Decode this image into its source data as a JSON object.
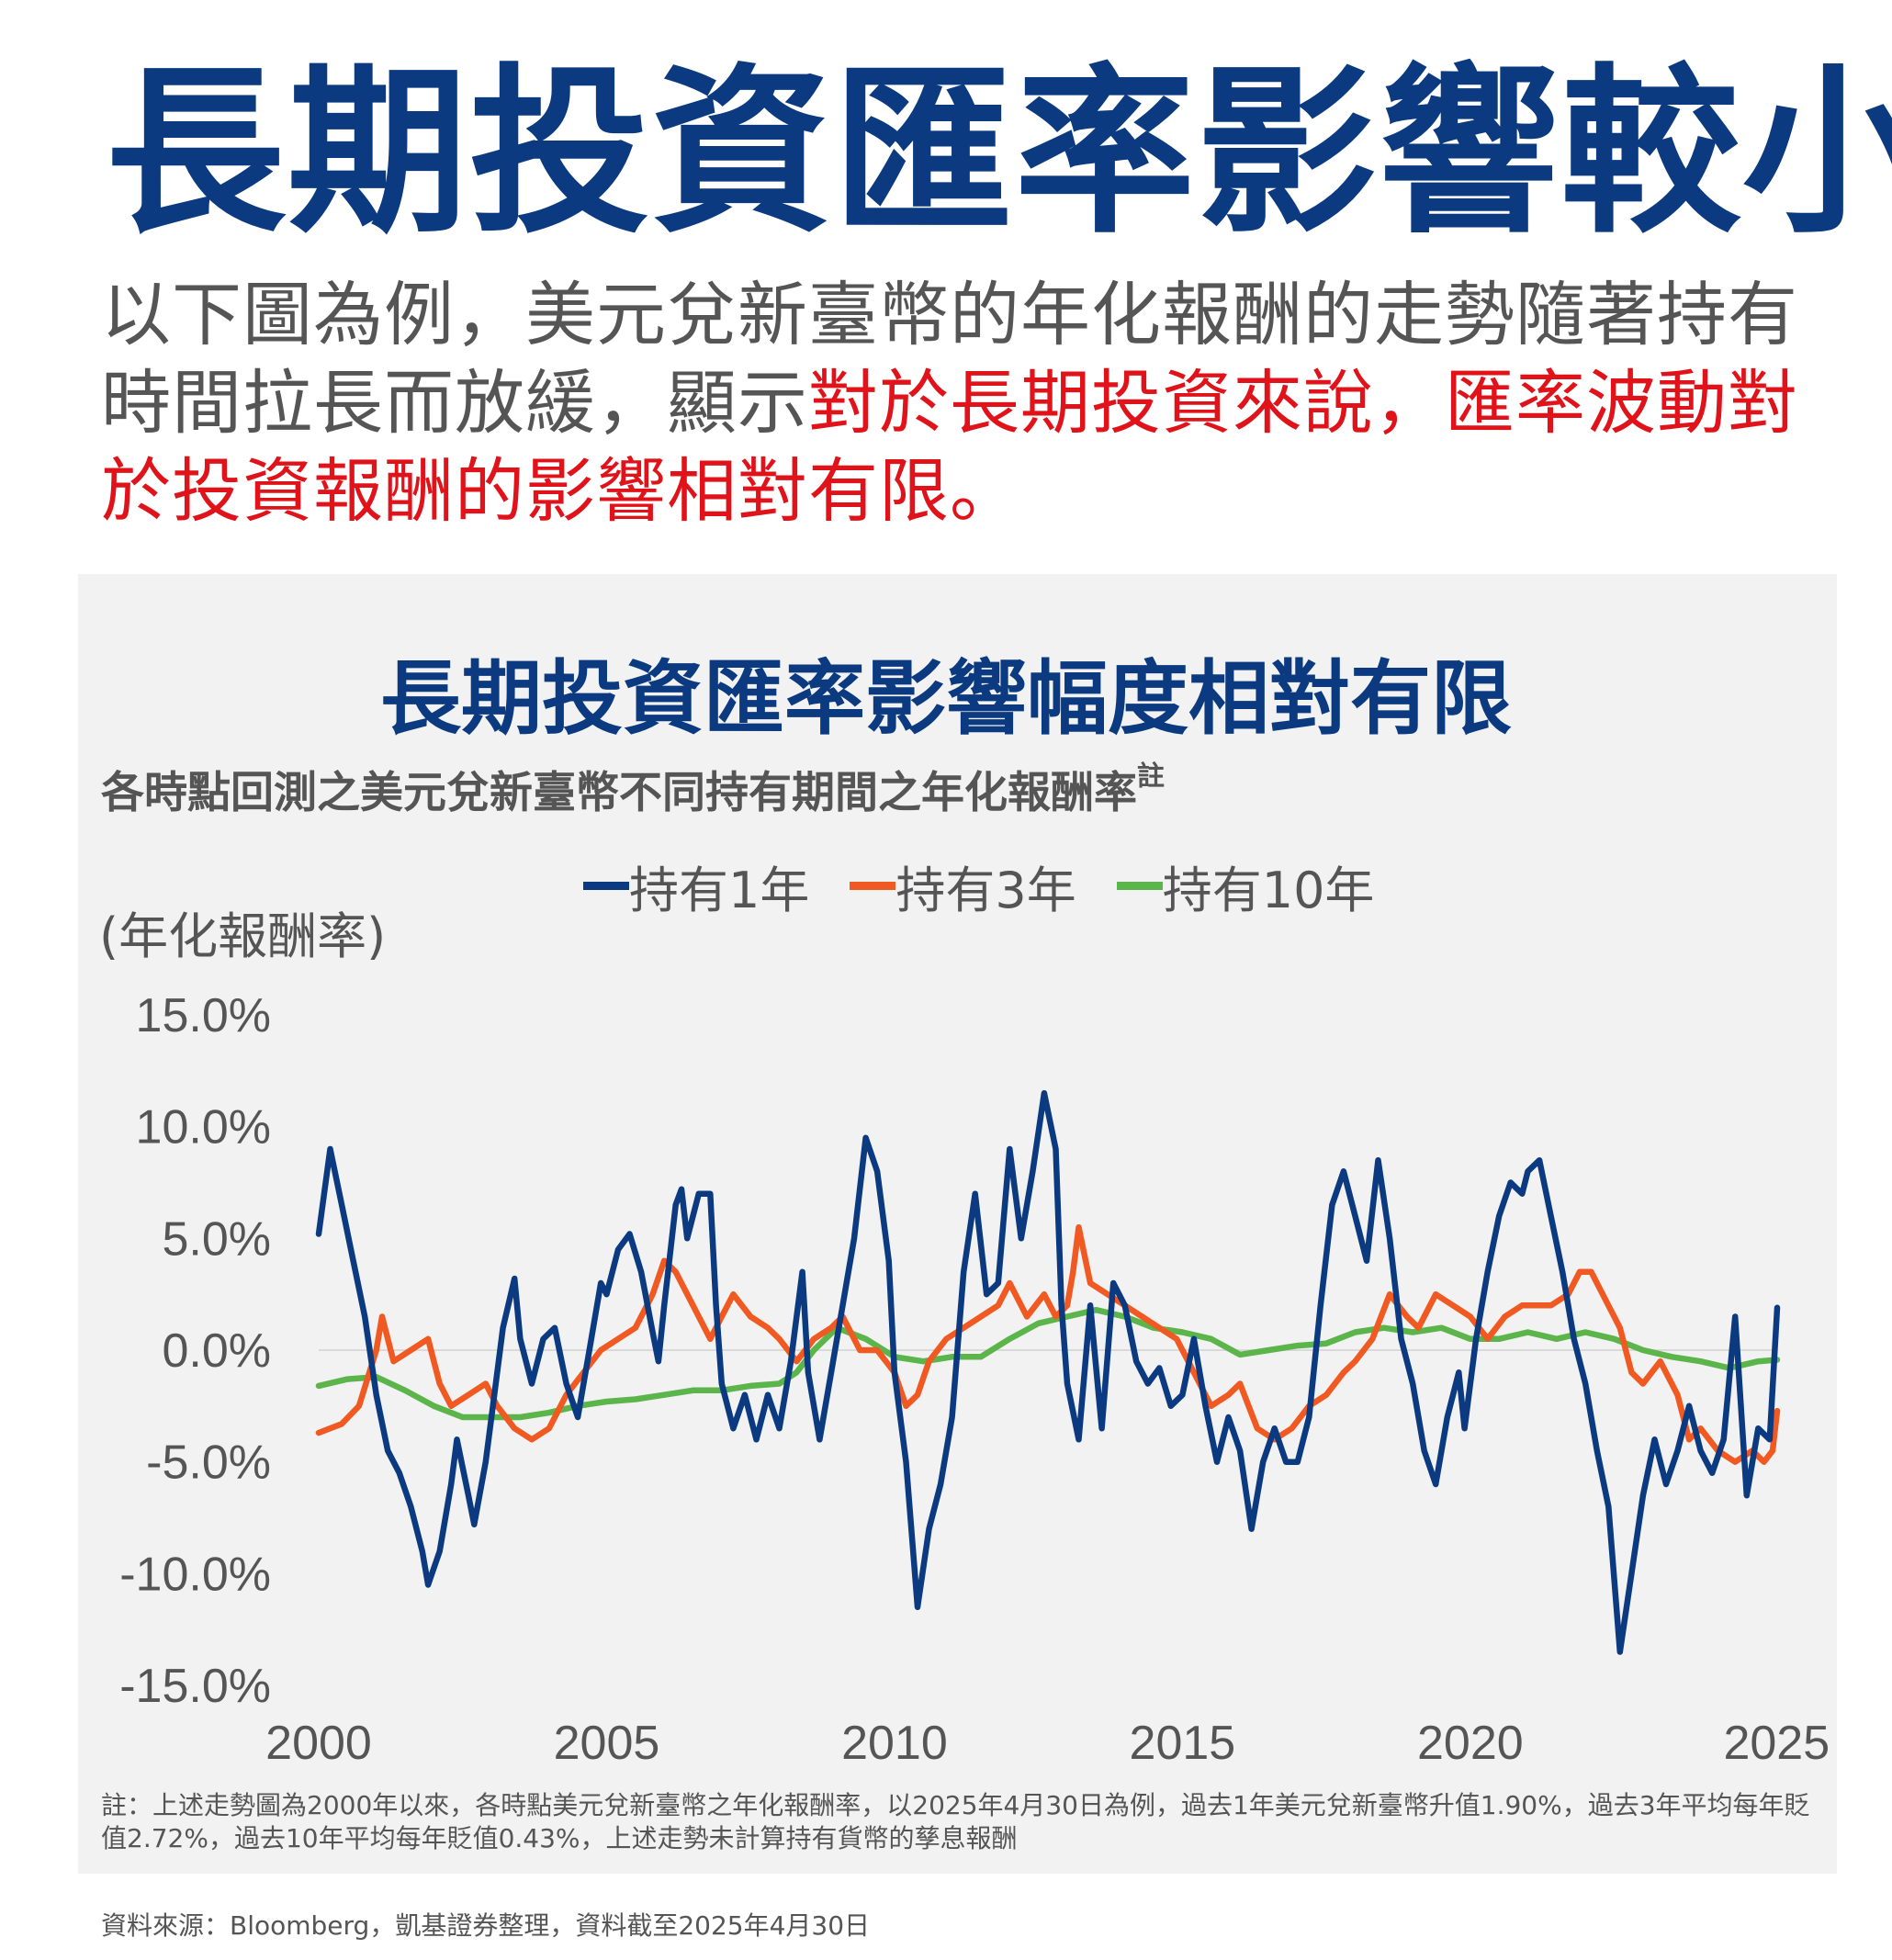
{
  "headline": "長期投資匯率影響較小",
  "intro": {
    "part1": "以下圖為例，美元兌新臺幣的年化報酬的走勢隨著持有時間拉長而放緩，顯示",
    "highlight": "對於長期投資來說，匯率波動對於投資報酬的影響相對有限。"
  },
  "chart_data": {
    "type": "line",
    "title": "長期投資匯率影響幅度相對有限",
    "subtitle": "各時點回測之美元兌新臺幣不同持有期間之年化報酬率",
    "subtitle_note": "註",
    "ylabel": "(年化報酬率)",
    "xlabel": "",
    "ylim": [
      -15,
      15
    ],
    "xlim": [
      2000,
      2025.33
    ],
    "yticks": [
      "15.0%",
      "10.0%",
      "5.0%",
      "0.0%",
      "-5.0%",
      "-10.0%",
      "-15.0%"
    ],
    "xticks": [
      "2000",
      "2005",
      "2010",
      "2015",
      "2020",
      "2025"
    ],
    "grid": false,
    "legend_position": "top",
    "series": [
      {
        "name": "持有1年",
        "color": "#0b3a80",
        "points": [
          [
            2000.0,
            5.2
          ],
          [
            2000.2,
            9.0
          ],
          [
            2000.4,
            6.5
          ],
          [
            2000.6,
            4.0
          ],
          [
            2000.8,
            1.5
          ],
          [
            2001.0,
            -2.0
          ],
          [
            2001.2,
            -4.5
          ],
          [
            2001.4,
            -5.5
          ],
          [
            2001.6,
            -7.0
          ],
          [
            2001.8,
            -9.0
          ],
          [
            2001.9,
            -10.5
          ],
          [
            2002.1,
            -9.0
          ],
          [
            2002.3,
            -6.0
          ],
          [
            2002.4,
            -4.0
          ],
          [
            2002.6,
            -6.5
          ],
          [
            2002.7,
            -7.8
          ],
          [
            2002.9,
            -5.0
          ],
          [
            2003.0,
            -3.0
          ],
          [
            2003.2,
            1.0
          ],
          [
            2003.4,
            3.2
          ],
          [
            2003.5,
            0.5
          ],
          [
            2003.7,
            -1.5
          ],
          [
            2003.9,
            0.5
          ],
          [
            2004.1,
            1.0
          ],
          [
            2004.3,
            -1.5
          ],
          [
            2004.5,
            -3.0
          ],
          [
            2004.7,
            0.0
          ],
          [
            2004.9,
            3.0
          ],
          [
            2005.0,
            2.5
          ],
          [
            2005.2,
            4.5
          ],
          [
            2005.4,
            5.2
          ],
          [
            2005.6,
            3.5
          ],
          [
            2005.8,
            0.8
          ],
          [
            2005.9,
            -0.5
          ],
          [
            2006.0,
            2.0
          ],
          [
            2006.2,
            6.5
          ],
          [
            2006.3,
            7.2
          ],
          [
            2006.4,
            5.0
          ],
          [
            2006.6,
            7.0
          ],
          [
            2006.8,
            7.0
          ],
          [
            2006.9,
            2.0
          ],
          [
            2007.0,
            -1.5
          ],
          [
            2007.2,
            -3.5
          ],
          [
            2007.4,
            -2.0
          ],
          [
            2007.6,
            -4.0
          ],
          [
            2007.8,
            -2.0
          ],
          [
            2008.0,
            -3.5
          ],
          [
            2008.2,
            -0.5
          ],
          [
            2008.4,
            3.5
          ],
          [
            2008.5,
            -1.0
          ],
          [
            2008.7,
            -4.0
          ],
          [
            2008.9,
            -1.0
          ],
          [
            2009.1,
            2.0
          ],
          [
            2009.3,
            5.0
          ],
          [
            2009.5,
            9.5
          ],
          [
            2009.7,
            8.0
          ],
          [
            2009.9,
            4.0
          ],
          [
            2010.0,
            -1.0
          ],
          [
            2010.2,
            -5.0
          ],
          [
            2010.4,
            -11.5
          ],
          [
            2010.6,
            -8.0
          ],
          [
            2010.8,
            -6.0
          ],
          [
            2011.0,
            -3.0
          ],
          [
            2011.2,
            3.5
          ],
          [
            2011.4,
            7.0
          ],
          [
            2011.6,
            2.5
          ],
          [
            2011.8,
            3.0
          ],
          [
            2012.0,
            9.0
          ],
          [
            2012.2,
            5.0
          ],
          [
            2012.4,
            8.0
          ],
          [
            2012.6,
            11.5
          ],
          [
            2012.8,
            9.0
          ],
          [
            2012.9,
            2.0
          ],
          [
            2013.0,
            -1.5
          ],
          [
            2013.2,
            -4.0
          ],
          [
            2013.4,
            2.0
          ],
          [
            2013.6,
            -3.5
          ],
          [
            2013.8,
            3.0
          ],
          [
            2014.0,
            2.0
          ],
          [
            2014.2,
            -0.5
          ],
          [
            2014.4,
            -1.5
          ],
          [
            2014.6,
            -0.8
          ],
          [
            2014.8,
            -2.5
          ],
          [
            2015.0,
            -2.0
          ],
          [
            2015.2,
            0.5
          ],
          [
            2015.4,
            -2.5
          ],
          [
            2015.6,
            -5.0
          ],
          [
            2015.8,
            -3.0
          ],
          [
            2016.0,
            -4.5
          ],
          [
            2016.2,
            -8.0
          ],
          [
            2016.4,
            -5.0
          ],
          [
            2016.6,
            -3.5
          ],
          [
            2016.8,
            -5.0
          ],
          [
            2017.0,
            -5.0
          ],
          [
            2017.2,
            -3.0
          ],
          [
            2017.4,
            2.0
          ],
          [
            2017.6,
            6.5
          ],
          [
            2017.8,
            8.0
          ],
          [
            2018.0,
            6.0
          ],
          [
            2018.2,
            4.0
          ],
          [
            2018.4,
            8.5
          ],
          [
            2018.6,
            5.0
          ],
          [
            2018.8,
            0.5
          ],
          [
            2019.0,
            -1.5
          ],
          [
            2019.2,
            -4.5
          ],
          [
            2019.4,
            -6.0
          ],
          [
            2019.6,
            -3.0
          ],
          [
            2019.8,
            -1.0
          ],
          [
            2019.9,
            -3.5
          ],
          [
            2020.1,
            0.5
          ],
          [
            2020.3,
            3.5
          ],
          [
            2020.5,
            6.0
          ],
          [
            2020.7,
            7.5
          ],
          [
            2020.9,
            7.0
          ],
          [
            2021.0,
            8.0
          ],
          [
            2021.2,
            8.5
          ],
          [
            2021.4,
            6.0
          ],
          [
            2021.6,
            3.5
          ],
          [
            2021.8,
            0.5
          ],
          [
            2022.0,
            -1.5
          ],
          [
            2022.2,
            -4.5
          ],
          [
            2022.4,
            -7.0
          ],
          [
            2022.6,
            -13.5
          ],
          [
            2022.8,
            -10.0
          ],
          [
            2023.0,
            -6.5
          ],
          [
            2023.2,
            -4.0
          ],
          [
            2023.4,
            -6.0
          ],
          [
            2023.6,
            -4.5
          ],
          [
            2023.8,
            -2.5
          ],
          [
            2024.0,
            -4.5
          ],
          [
            2024.2,
            -5.5
          ],
          [
            2024.4,
            -4.0
          ],
          [
            2024.6,
            1.5
          ],
          [
            2024.8,
            -6.5
          ],
          [
            2025.0,
            -3.5
          ],
          [
            2025.2,
            -4.0
          ],
          [
            2025.33,
            1.9
          ]
        ]
      },
      {
        "name": "持有3年",
        "color": "#f05a22",
        "points": [
          [
            2000.0,
            -3.7
          ],
          [
            2000.4,
            -3.3
          ],
          [
            2000.7,
            -2.5
          ],
          [
            2001.0,
            0.0
          ],
          [
            2001.1,
            1.5
          ],
          [
            2001.3,
            -0.5
          ],
          [
            2001.6,
            0.0
          ],
          [
            2001.9,
            0.5
          ],
          [
            2002.1,
            -1.5
          ],
          [
            2002.3,
            -2.5
          ],
          [
            2002.6,
            -2.0
          ],
          [
            2002.9,
            -1.5
          ],
          [
            2003.1,
            -2.5
          ],
          [
            2003.4,
            -3.5
          ],
          [
            2003.7,
            -4.0
          ],
          [
            2004.0,
            -3.5
          ],
          [
            2004.3,
            -2.0
          ],
          [
            2004.6,
            -1.0
          ],
          [
            2004.9,
            0.0
          ],
          [
            2005.2,
            0.5
          ],
          [
            2005.5,
            1.0
          ],
          [
            2005.8,
            2.5
          ],
          [
            2006.0,
            4.0
          ],
          [
            2006.2,
            3.5
          ],
          [
            2006.5,
            2.0
          ],
          [
            2006.8,
            0.5
          ],
          [
            2007.0,
            1.5
          ],
          [
            2007.2,
            2.5
          ],
          [
            2007.5,
            1.5
          ],
          [
            2007.8,
            1.0
          ],
          [
            2008.0,
            0.5
          ],
          [
            2008.3,
            -0.5
          ],
          [
            2008.6,
            0.5
          ],
          [
            2008.9,
            1.0
          ],
          [
            2009.1,
            1.5
          ],
          [
            2009.4,
            0.0
          ],
          [
            2009.7,
            0.0
          ],
          [
            2010.0,
            -1.0
          ],
          [
            2010.2,
            -2.5
          ],
          [
            2010.4,
            -2.0
          ],
          [
            2010.6,
            -0.5
          ],
          [
            2010.9,
            0.5
          ],
          [
            2011.2,
            1.0
          ],
          [
            2011.5,
            1.5
          ],
          [
            2011.8,
            2.0
          ],
          [
            2012.0,
            3.0
          ],
          [
            2012.3,
            1.5
          ],
          [
            2012.6,
            2.5
          ],
          [
            2012.8,
            1.5
          ],
          [
            2013.0,
            2.0
          ],
          [
            2013.1,
            3.5
          ],
          [
            2013.2,
            5.5
          ],
          [
            2013.4,
            3.0
          ],
          [
            2013.7,
            2.5
          ],
          [
            2014.0,
            2.0
          ],
          [
            2014.3,
            1.5
          ],
          [
            2014.6,
            1.0
          ],
          [
            2014.9,
            0.5
          ],
          [
            2015.2,
            -1.0
          ],
          [
            2015.5,
            -2.5
          ],
          [
            2015.8,
            -2.0
          ],
          [
            2016.0,
            -1.5
          ],
          [
            2016.3,
            -3.5
          ],
          [
            2016.6,
            -4.0
          ],
          [
            2016.9,
            -3.5
          ],
          [
            2017.2,
            -2.5
          ],
          [
            2017.5,
            -2.0
          ],
          [
            2017.8,
            -1.0
          ],
          [
            2018.0,
            -0.5
          ],
          [
            2018.3,
            0.5
          ],
          [
            2018.6,
            2.5
          ],
          [
            2018.9,
            1.5
          ],
          [
            2019.1,
            1.0
          ],
          [
            2019.4,
            2.5
          ],
          [
            2019.7,
            2.0
          ],
          [
            2020.0,
            1.5
          ],
          [
            2020.3,
            0.5
          ],
          [
            2020.6,
            1.5
          ],
          [
            2020.9,
            2.0
          ],
          [
            2021.1,
            2.0
          ],
          [
            2021.4,
            2.0
          ],
          [
            2021.7,
            2.5
          ],
          [
            2021.9,
            3.5
          ],
          [
            2022.1,
            3.5
          ],
          [
            2022.3,
            2.5
          ],
          [
            2022.6,
            1.0
          ],
          [
            2022.8,
            -1.0
          ],
          [
            2023.0,
            -1.5
          ],
          [
            2023.3,
            -0.5
          ],
          [
            2023.6,
            -2.0
          ],
          [
            2023.8,
            -4.0
          ],
          [
            2024.0,
            -3.5
          ],
          [
            2024.3,
            -4.5
          ],
          [
            2024.6,
            -5.0
          ],
          [
            2024.9,
            -4.5
          ],
          [
            2025.1,
            -5.0
          ],
          [
            2025.25,
            -4.5
          ],
          [
            2025.33,
            -2.72
          ]
        ]
      },
      {
        "name": "持有10年",
        "color": "#5bb54a",
        "points": [
          [
            2000.0,
            -1.6
          ],
          [
            2000.5,
            -1.3
          ],
          [
            2001.0,
            -1.2
          ],
          [
            2001.5,
            -1.8
          ],
          [
            2002.0,
            -2.5
          ],
          [
            2002.5,
            -3.0
          ],
          [
            2003.0,
            -3.0
          ],
          [
            2003.5,
            -3.0
          ],
          [
            2004.0,
            -2.8
          ],
          [
            2004.5,
            -2.5
          ],
          [
            2005.0,
            -2.3
          ],
          [
            2005.5,
            -2.2
          ],
          [
            2006.0,
            -2.0
          ],
          [
            2006.5,
            -1.8
          ],
          [
            2007.0,
            -1.8
          ],
          [
            2007.5,
            -1.6
          ],
          [
            2008.0,
            -1.5
          ],
          [
            2008.3,
            -1.0
          ],
          [
            2008.6,
            0.0
          ],
          [
            2009.0,
            1.0
          ],
          [
            2009.5,
            0.5
          ],
          [
            2010.0,
            -0.3
          ],
          [
            2010.5,
            -0.5
          ],
          [
            2011.0,
            -0.3
          ],
          [
            2011.5,
            -0.3
          ],
          [
            2012.0,
            0.5
          ],
          [
            2012.5,
            1.2
          ],
          [
            2013.0,
            1.5
          ],
          [
            2013.5,
            1.8
          ],
          [
            2014.0,
            1.5
          ],
          [
            2014.5,
            1.0
          ],
          [
            2015.0,
            0.8
          ],
          [
            2015.5,
            0.5
          ],
          [
            2016.0,
            -0.2
          ],
          [
            2016.5,
            0.0
          ],
          [
            2017.0,
            0.2
          ],
          [
            2017.5,
            0.3
          ],
          [
            2018.0,
            0.8
          ],
          [
            2018.5,
            1.0
          ],
          [
            2019.0,
            0.8
          ],
          [
            2019.5,
            1.0
          ],
          [
            2020.0,
            0.5
          ],
          [
            2020.5,
            0.5
          ],
          [
            2021.0,
            0.8
          ],
          [
            2021.5,
            0.5
          ],
          [
            2022.0,
            0.8
          ],
          [
            2022.5,
            0.5
          ],
          [
            2023.0,
            0.0
          ],
          [
            2023.5,
            -0.3
          ],
          [
            2024.0,
            -0.5
          ],
          [
            2024.5,
            -0.8
          ],
          [
            2025.0,
            -0.5
          ],
          [
            2025.33,
            -0.43
          ]
        ]
      }
    ]
  },
  "footnote": "註：上述走勢圖為2000年以來，各時點美元兌新臺幣之年化報酬率，以2025年4月30日為例，過去1年美元兌新臺幣升值1.90%，過去3年平均每年貶值2.72%，過去10年平均每年貶值0.43%，上述走勢未計算持有貨幣的孳息報酬",
  "source": "資料來源：Bloomberg，凱基證券整理，資料截至2025年4月30日"
}
